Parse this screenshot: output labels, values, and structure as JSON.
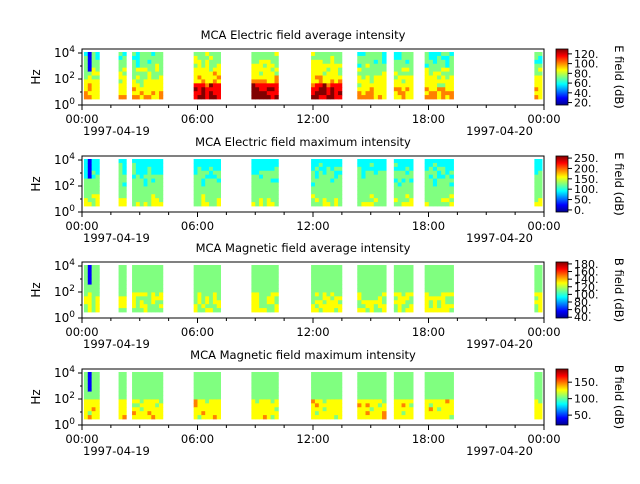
{
  "colormap": [
    "#00008f",
    "#0000ff",
    "#0080ff",
    "#00ffff",
    "#80ff80",
    "#ffff00",
    "#ff8000",
    "#ff0000",
    "#800000"
  ],
  "x_ticks": [
    "00:00",
    "06:00",
    "12:00",
    "18:00",
    "00:00"
  ],
  "x_dates": [
    "1997-04-19",
    "1997-04-20"
  ],
  "chart_data": [
    {
      "type": "heatmap",
      "title": "MCA  Electric field average intensity",
      "ylabel": "Hz",
      "ytick_labels": [
        "10^0",
        "10^2",
        "10^4"
      ],
      "colorbar_label": "E field (dB)",
      "colorbar_ticks": [
        "20.",
        "40.",
        "60.",
        "80.",
        "100.",
        "120."
      ],
      "colorbar_range": [
        15,
        130
      ],
      "x_range_hours": [
        0,
        24
      ],
      "data_blocks_hours": [
        [
          0.1,
          0.9
        ],
        [
          1.9,
          2.3
        ],
        [
          2.6,
          4.2
        ],
        [
          5.8,
          7.2
        ],
        [
          8.8,
          10.2
        ],
        [
          11.9,
          13.5
        ],
        [
          14.3,
          15.8
        ],
        [
          16.2,
          17.2
        ],
        [
          17.8,
          19.3
        ],
        [
          23.5,
          23.9
        ]
      ]
    },
    {
      "type": "heatmap",
      "title": "MCA  Electric field maximum intensity",
      "ylabel": "Hz",
      "ytick_labels": [
        "10^0",
        "10^2",
        "10^4"
      ],
      "colorbar_label": "E field (dB)",
      "colorbar_ticks": [
        "0.",
        "50.",
        "100.",
        "150.",
        "200.",
        "250."
      ],
      "colorbar_range": [
        -10,
        260
      ],
      "x_range_hours": [
        0,
        24
      ],
      "data_blocks_hours": [
        [
          0.1,
          0.9
        ],
        [
          1.9,
          2.3
        ],
        [
          2.6,
          4.2
        ],
        [
          5.8,
          7.2
        ],
        [
          8.8,
          10.2
        ],
        [
          11.9,
          13.5
        ],
        [
          14.3,
          15.8
        ],
        [
          16.2,
          17.2
        ],
        [
          17.8,
          19.3
        ],
        [
          23.5,
          23.9
        ]
      ]
    },
    {
      "type": "heatmap",
      "title": "MCA  Magnetic field average intensity",
      "ylabel": "Hz",
      "ytick_labels": [
        "10^0",
        "10^2",
        "10^4"
      ],
      "colorbar_label": "B field (dB)",
      "colorbar_ticks": [
        "40.",
        "60.",
        "80.",
        "100.",
        "120.",
        "140.",
        "160.",
        "180."
      ],
      "colorbar_range": [
        38,
        185
      ],
      "x_range_hours": [
        0,
        24
      ],
      "data_blocks_hours": [
        [
          0.1,
          0.9
        ],
        [
          1.9,
          2.3
        ],
        [
          2.6,
          4.2
        ],
        [
          5.8,
          7.2
        ],
        [
          8.8,
          10.2
        ],
        [
          11.9,
          13.5
        ],
        [
          14.3,
          15.8
        ],
        [
          16.2,
          17.2
        ],
        [
          17.8,
          19.3
        ],
        [
          23.5,
          23.9
        ]
      ]
    },
    {
      "type": "heatmap",
      "title": "MCA  Magnetic field maximum intensity",
      "ylabel": "Hz",
      "ytick_labels": [
        "10^0",
        "10^2",
        "10^4"
      ],
      "colorbar_label": "B field (dB)",
      "colorbar_ticks": [
        "50.",
        "100.",
        "150."
      ],
      "colorbar_range": [
        20,
        190
      ],
      "x_range_hours": [
        0,
        24
      ],
      "data_blocks_hours": [
        [
          0.1,
          0.9
        ],
        [
          1.9,
          2.3
        ],
        [
          2.6,
          4.2
        ],
        [
          5.8,
          7.2
        ],
        [
          8.8,
          10.2
        ],
        [
          11.9,
          13.5
        ],
        [
          14.3,
          15.8
        ],
        [
          16.2,
          17.2
        ],
        [
          17.8,
          19.3
        ],
        [
          23.5,
          23.9
        ]
      ]
    }
  ]
}
